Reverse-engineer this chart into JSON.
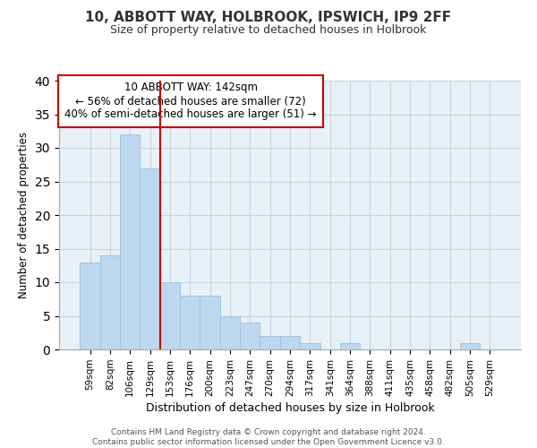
{
  "title": "10, ABBOTT WAY, HOLBROOK, IPSWICH, IP9 2FF",
  "subtitle": "Size of property relative to detached houses in Holbrook",
  "xlabel": "Distribution of detached houses by size in Holbrook",
  "ylabel": "Number of detached properties",
  "bar_labels": [
    "59sqm",
    "82sqm",
    "106sqm",
    "129sqm",
    "153sqm",
    "176sqm",
    "200sqm",
    "223sqm",
    "247sqm",
    "270sqm",
    "294sqm",
    "317sqm",
    "341sqm",
    "364sqm",
    "388sqm",
    "411sqm",
    "435sqm",
    "458sqm",
    "482sqm",
    "505sqm",
    "529sqm"
  ],
  "bar_values": [
    13,
    14,
    32,
    27,
    10,
    8,
    8,
    5,
    4,
    2,
    2,
    1,
    0,
    1,
    0,
    0,
    0,
    0,
    0,
    1,
    0
  ],
  "bar_color": "#bdd7ee",
  "bar_edge_color": "#9ec6e0",
  "vline_color": "#cc0000",
  "ylim": [
    0,
    40
  ],
  "yticks": [
    0,
    5,
    10,
    15,
    20,
    25,
    30,
    35,
    40
  ],
  "annotation_line1": "10 ABBOTT WAY: 142sqm",
  "annotation_line2": "← 56% of detached houses are smaller (72)",
  "annotation_line3": "40% of semi-detached houses are larger (51) →",
  "footer_line1": "Contains HM Land Registry data © Crown copyright and database right 2024.",
  "footer_line2": "Contains public sector information licensed under the Open Government Licence v3.0.",
  "background_color": "#ffffff",
  "plot_bg_color": "#e8f0f8",
  "grid_color": "#c8d4e0"
}
